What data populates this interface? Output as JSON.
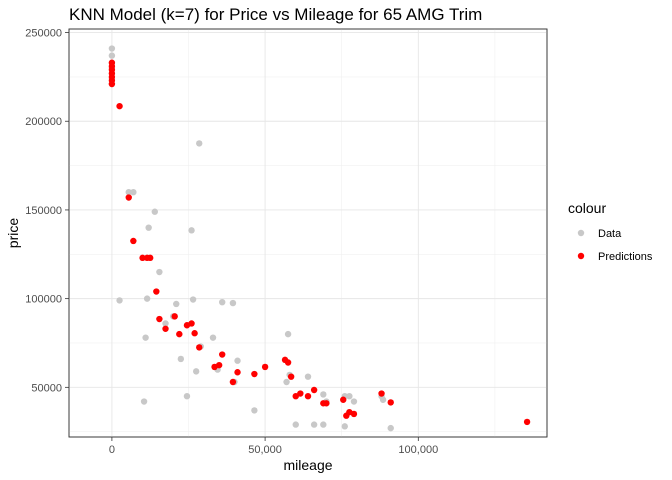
{
  "chart_data": {
    "type": "scatter",
    "title": "KNN Model (k=7) for Price vs Mileage for 65 AMG Trim",
    "xlabel": "mileage",
    "ylabel": "price",
    "xlim": [
      -14000,
      142000
    ],
    "ylim": [
      22000,
      252000
    ],
    "x_ticks": [
      0,
      50000,
      100000
    ],
    "x_tick_labels": [
      "0",
      "50,000",
      "100,000"
    ],
    "y_ticks": [
      50000,
      100000,
      150000,
      200000,
      250000
    ],
    "y_tick_labels": [
      "50000",
      "100000",
      "150000",
      "200000",
      "250000"
    ],
    "grid": true,
    "legend": {
      "title": "colour",
      "position": "right"
    },
    "series": [
      {
        "name": "Data",
        "color": "#c8c8c8",
        "points": [
          [
            0,
            241000
          ],
          [
            0,
            237000
          ],
          [
            0,
            233000
          ],
          [
            0,
            230000
          ],
          [
            0,
            227000
          ],
          [
            0,
            224000
          ],
          [
            0,
            221000
          ],
          [
            2500,
            99000
          ],
          [
            5500,
            160000
          ],
          [
            7000,
            160000
          ],
          [
            10500,
            42000
          ],
          [
            11000,
            78000
          ],
          [
            11500,
            100000
          ],
          [
            12000,
            140000
          ],
          [
            14000,
            149000
          ],
          [
            15500,
            115000
          ],
          [
            17500,
            86000
          ],
          [
            20000,
            90000
          ],
          [
            21000,
            97000
          ],
          [
            22500,
            66000
          ],
          [
            24500,
            45000
          ],
          [
            26000,
            138500
          ],
          [
            26500,
            99500
          ],
          [
            27500,
            59000
          ],
          [
            28500,
            187500
          ],
          [
            29000,
            73000
          ],
          [
            33000,
            78000
          ],
          [
            34500,
            60000
          ],
          [
            36000,
            98000
          ],
          [
            39500,
            97500
          ],
          [
            40000,
            53000
          ],
          [
            41000,
            65000
          ],
          [
            46500,
            37000
          ],
          [
            57000,
            53000
          ],
          [
            57500,
            80000
          ],
          [
            58000,
            57000
          ],
          [
            60000,
            29000
          ],
          [
            64000,
            56000
          ],
          [
            66000,
            29000
          ],
          [
            69000,
            29000
          ],
          [
            69000,
            46000
          ],
          [
            70000,
            42000
          ],
          [
            76000,
            45000
          ],
          [
            76000,
            28000
          ],
          [
            77500,
            45000
          ],
          [
            79000,
            42000
          ],
          [
            88000,
            45000
          ],
          [
            88500,
            43000
          ],
          [
            91000,
            27000
          ]
        ]
      },
      {
        "name": "Predictions",
        "color": "#ff0000",
        "points": [
          [
            0,
            233000
          ],
          [
            0,
            231000
          ],
          [
            0,
            229000
          ],
          [
            0,
            227000
          ],
          [
            0,
            225000
          ],
          [
            0,
            223000
          ],
          [
            0,
            221000
          ],
          [
            2500,
            208500
          ],
          [
            5500,
            157000
          ],
          [
            7000,
            132500
          ],
          [
            10000,
            123000
          ],
          [
            11500,
            123000
          ],
          [
            12500,
            123000
          ],
          [
            14500,
            104000
          ],
          [
            15500,
            88500
          ],
          [
            17500,
            83000
          ],
          [
            20500,
            90000
          ],
          [
            22000,
            80000
          ],
          [
            24500,
            85000
          ],
          [
            26000,
            86000
          ],
          [
            27000,
            80500
          ],
          [
            28500,
            72500
          ],
          [
            33500,
            61500
          ],
          [
            35000,
            62500
          ],
          [
            36000,
            68500
          ],
          [
            39500,
            53000
          ],
          [
            41000,
            58500
          ],
          [
            46500,
            57500
          ],
          [
            50000,
            61500
          ],
          [
            56500,
            65500
          ],
          [
            57500,
            64000
          ],
          [
            58500,
            56000
          ],
          [
            60000,
            45000
          ],
          [
            61500,
            46500
          ],
          [
            64000,
            45000
          ],
          [
            66000,
            48500
          ],
          [
            69000,
            41000
          ],
          [
            70000,
            41000
          ],
          [
            75500,
            43000
          ],
          [
            76500,
            34000
          ],
          [
            77500,
            36000
          ],
          [
            79000,
            35000
          ],
          [
            88000,
            46500
          ],
          [
            91000,
            41500
          ],
          [
            135500,
            30500
          ]
        ]
      }
    ]
  }
}
